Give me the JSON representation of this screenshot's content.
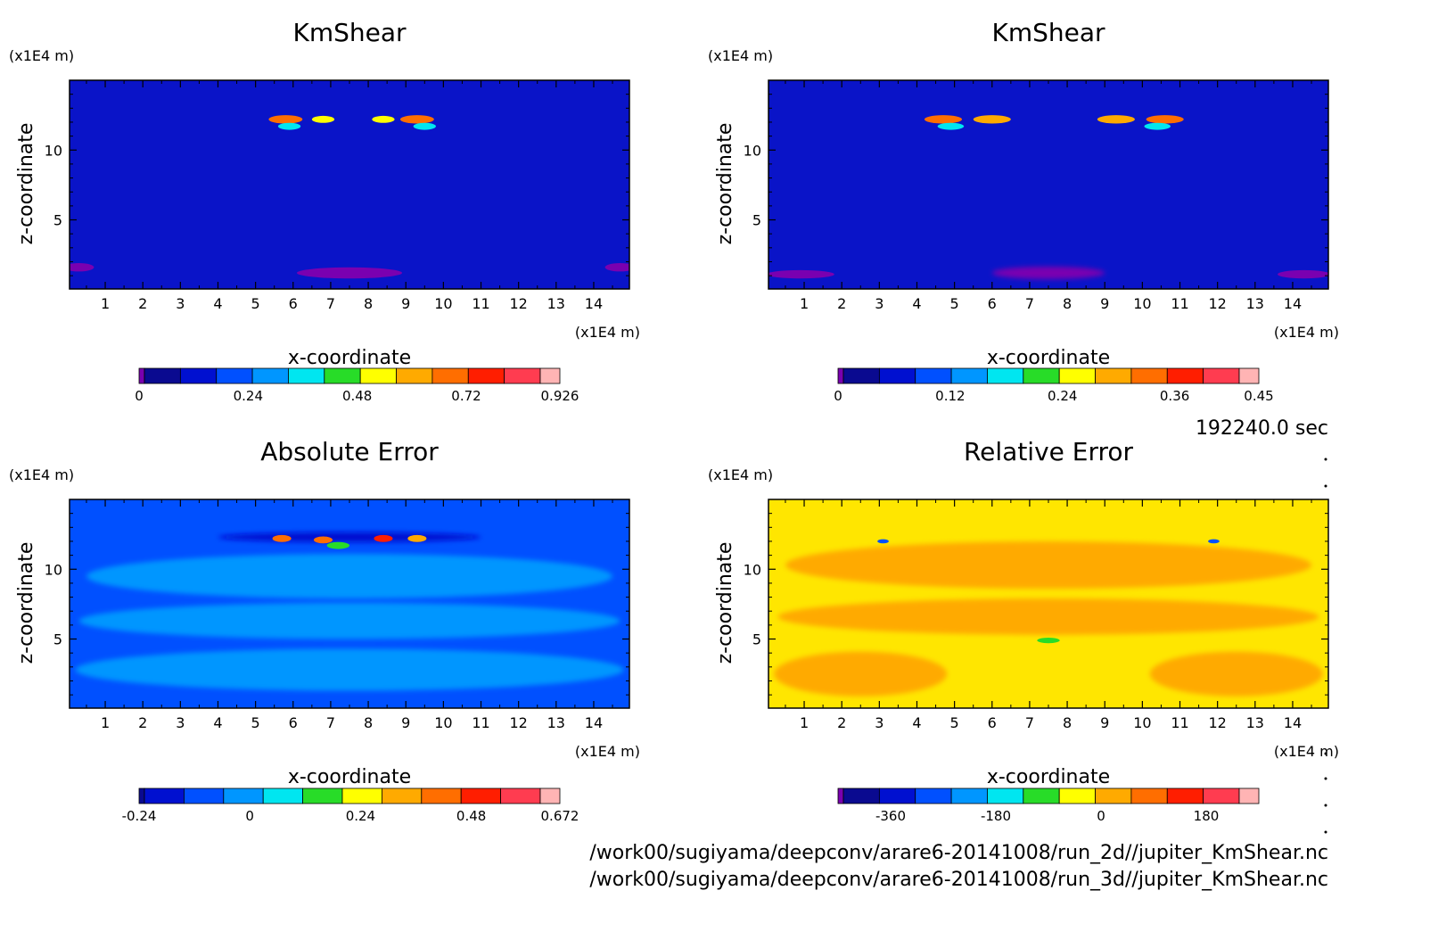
{
  "time_label": "192240.0 sec",
  "files": [
    "/work00/sugiyama/deepconv/arare6-20141008/run_2d//jupiter_KmShear.nc",
    "/work00/sugiyama/deepconv/arare6-20141008/run_3d//jupiter_KmShear.nc"
  ],
  "chart_data": [
    {
      "type": "heatmap",
      "title": "KmShear",
      "xlabel": "x-coordinate",
      "ylabel": "z-coordinate",
      "x_unit": "(x1E4 m)",
      "y_unit": "(x1E4 m)",
      "xlim": [
        0.05,
        14.95
      ],
      "ylim": [
        0.05,
        15
      ],
      "xticks": [
        "1",
        "2",
        "3",
        "4",
        "5",
        "6",
        "7",
        "8",
        "9",
        "10",
        "11",
        "12",
        "13",
        "14"
      ],
      "yticks": [
        "5",
        "10"
      ],
      "background": "#0a14c8",
      "colorbar": {
        "colors": [
          "#7a00b0",
          "#0a0a90",
          "#0010d0",
          "#0050ff",
          "#0096ff",
          "#00e6f0",
          "#28dc28",
          "#ffff00",
          "#ffaa00",
          "#ff6e00",
          "#ff1e00",
          "#ff3c50",
          "#ffb4b4"
        ],
        "ticks": [
          "0",
          "0.24",
          "0.48",
          "0.72",
          "0.926"
        ],
        "tick_values": [
          0,
          0.24,
          0.48,
          0.72,
          0.926
        ],
        "range": [
          0,
          0.926
        ]
      },
      "features": [
        {
          "x": 5.8,
          "z": 12.2,
          "w": 0.45,
          "h": 0.3,
          "color": "#ff6e00"
        },
        {
          "x": 6.8,
          "z": 12.2,
          "w": 0.3,
          "h": 0.25,
          "color": "#ffff00"
        },
        {
          "x": 8.4,
          "z": 12.2,
          "w": 0.3,
          "h": 0.25,
          "color": "#ffff00"
        },
        {
          "x": 9.3,
          "z": 12.2,
          "w": 0.45,
          "h": 0.3,
          "color": "#ff6e00"
        },
        {
          "x": 5.9,
          "z": 11.7,
          "w": 0.3,
          "h": 0.25,
          "color": "#00e6f0"
        },
        {
          "x": 9.5,
          "z": 11.7,
          "w": 0.3,
          "h": 0.25,
          "color": "#00e6f0"
        },
        {
          "x": 7.5,
          "z": 1.2,
          "w": 1.4,
          "h": 0.4,
          "color": "#7a00b0"
        },
        {
          "x": 0.3,
          "z": 1.6,
          "w": 0.4,
          "h": 0.3,
          "color": "#7a00b0"
        },
        {
          "x": 14.7,
          "z": 1.6,
          "w": 0.4,
          "h": 0.3,
          "color": "#7a00b0"
        }
      ]
    },
    {
      "type": "heatmap",
      "title": "KmShear",
      "xlabel": "x-coordinate",
      "ylabel": "z-coordinate",
      "x_unit": "(x1E4 m)",
      "y_unit": "(x1E4 m)",
      "xlim": [
        0.05,
        14.95
      ],
      "ylim": [
        0.05,
        15
      ],
      "xticks": [
        "1",
        "2",
        "3",
        "4",
        "5",
        "6",
        "7",
        "8",
        "9",
        "10",
        "11",
        "12",
        "13",
        "14"
      ],
      "yticks": [
        "5",
        "10"
      ],
      "background": "#0a14c8",
      "colorbar": {
        "colors": [
          "#7a00b0",
          "#0a0a90",
          "#0010d0",
          "#0050ff",
          "#0096ff",
          "#00e6f0",
          "#28dc28",
          "#ffff00",
          "#ffaa00",
          "#ff6e00",
          "#ff1e00",
          "#ff3c50",
          "#ffb4b4"
        ],
        "ticks": [
          "0",
          "0.12",
          "0.24",
          "0.36",
          "0.45"
        ],
        "tick_values": [
          0,
          0.12,
          0.24,
          0.36,
          0.45
        ],
        "range": [
          0,
          0.45
        ]
      },
      "features": [
        {
          "x": 4.7,
          "z": 12.2,
          "w": 0.5,
          "h": 0.3,
          "color": "#ff6e00"
        },
        {
          "x": 6.0,
          "z": 12.2,
          "w": 0.5,
          "h": 0.3,
          "color": "#ffaa00"
        },
        {
          "x": 9.3,
          "z": 12.2,
          "w": 0.5,
          "h": 0.3,
          "color": "#ffaa00"
        },
        {
          "x": 10.6,
          "z": 12.2,
          "w": 0.5,
          "h": 0.3,
          "color": "#ff6e00"
        },
        {
          "x": 4.9,
          "z": 11.7,
          "w": 0.35,
          "h": 0.25,
          "color": "#00e6f0"
        },
        {
          "x": 10.4,
          "z": 11.7,
          "w": 0.35,
          "h": 0.25,
          "color": "#00e6f0"
        },
        {
          "x": 7.5,
          "z": 1.2,
          "w": 1.5,
          "h": 0.45,
          "color": "#7a00b0"
        },
        {
          "x": 0.9,
          "z": 1.1,
          "w": 0.9,
          "h": 0.3,
          "color": "#7a00b0"
        },
        {
          "x": 14.3,
          "z": 1.1,
          "w": 0.7,
          "h": 0.3,
          "color": "#7a00b0"
        }
      ]
    },
    {
      "type": "heatmap",
      "title": "Absolute Error",
      "xlabel": "x-coordinate",
      "ylabel": "z-coordinate",
      "x_unit": "(x1E4 m)",
      "y_unit": "(x1E4 m)",
      "xlim": [
        0.05,
        14.95
      ],
      "ylim": [
        0.05,
        15
      ],
      "xticks": [
        "1",
        "2",
        "3",
        "4",
        "5",
        "6",
        "7",
        "8",
        "9",
        "10",
        "11",
        "12",
        "13",
        "14"
      ],
      "yticks": [
        "5",
        "10"
      ],
      "background": "#0050ff",
      "colorbar": {
        "colors": [
          "#0a0a90",
          "#0010d0",
          "#0050ff",
          "#0096ff",
          "#00e6f0",
          "#28dc28",
          "#ffff00",
          "#ffaa00",
          "#ff6e00",
          "#ff1e00",
          "#ff3c50",
          "#ffb4b4"
        ],
        "ticks": [
          "-0.24",
          "0",
          "0.24",
          "0.48",
          "0.672"
        ],
        "tick_values": [
          -0.24,
          0,
          0.24,
          0.48,
          0.672
        ],
        "range": [
          -0.24,
          0.672
        ]
      },
      "features": [
        {
          "x": 7.5,
          "z": 9.5,
          "w": 7.0,
          "h": 1.6,
          "color": "#0096ff"
        },
        {
          "x": 7.5,
          "z": 6.3,
          "w": 7.2,
          "h": 1.3,
          "color": "#0096ff"
        },
        {
          "x": 7.5,
          "z": 2.8,
          "w": 7.3,
          "h": 1.5,
          "color": "#0096ff"
        },
        {
          "x": 7.5,
          "z": 12.3,
          "w": 3.5,
          "h": 0.35,
          "color": "#0010d0"
        },
        {
          "x": 5.7,
          "z": 12.2,
          "w": 0.25,
          "h": 0.25,
          "color": "#ff6e00"
        },
        {
          "x": 6.8,
          "z": 12.1,
          "w": 0.25,
          "h": 0.25,
          "color": "#ff6e00"
        },
        {
          "x": 8.4,
          "z": 12.2,
          "w": 0.25,
          "h": 0.25,
          "color": "#ff1e00"
        },
        {
          "x": 9.3,
          "z": 12.2,
          "w": 0.25,
          "h": 0.25,
          "color": "#ffaa00"
        },
        {
          "x": 7.2,
          "z": 11.7,
          "w": 0.3,
          "h": 0.25,
          "color": "#28dc28"
        }
      ]
    },
    {
      "type": "heatmap",
      "title": "Relative Error",
      "xlabel": "x-coordinate",
      "ylabel": "z-coordinate",
      "x_unit": "(x1E4 m)",
      "y_unit": "(x1E4 m)",
      "xlim": [
        0.05,
        14.95
      ],
      "ylim": [
        0.05,
        15
      ],
      "xticks": [
        "1",
        "2",
        "3",
        "4",
        "5",
        "6",
        "7",
        "8",
        "9",
        "10",
        "11",
        "12",
        "13",
        "14"
      ],
      "yticks": [
        "5",
        "10"
      ],
      "background": "#ffe600",
      "colorbar": {
        "colors": [
          "#7a00b0",
          "#0a0a90",
          "#0010d0",
          "#0050ff",
          "#0096ff",
          "#00e6f0",
          "#28dc28",
          "#ffff00",
          "#ffaa00",
          "#ff6e00",
          "#ff1e00",
          "#ff3c50",
          "#ffb4b4"
        ],
        "ticks": [
          "-360",
          "-180",
          "0",
          "180"
        ],
        "tick_values": [
          -360,
          -180,
          0,
          180
        ],
        "range": [
          -450,
          270
        ]
      },
      "features": [
        {
          "x": 7.5,
          "z": 10.3,
          "w": 7.0,
          "h": 1.7,
          "color": "#ffaa00"
        },
        {
          "x": 7.5,
          "z": 6.6,
          "w": 7.2,
          "h": 1.3,
          "color": "#ffaa00"
        },
        {
          "x": 2.5,
          "z": 2.5,
          "w": 2.3,
          "h": 1.6,
          "color": "#ffaa00"
        },
        {
          "x": 12.5,
          "z": 2.5,
          "w": 2.3,
          "h": 1.6,
          "color": "#ffaa00"
        },
        {
          "x": 7.5,
          "z": 4.9,
          "w": 0.3,
          "h": 0.2,
          "color": "#28dc28"
        },
        {
          "x": 3.1,
          "z": 12.0,
          "w": 0.15,
          "h": 0.15,
          "color": "#0050ff"
        },
        {
          "x": 11.9,
          "z": 12.0,
          "w": 0.15,
          "h": 0.15,
          "color": "#0050ff"
        }
      ]
    }
  ]
}
